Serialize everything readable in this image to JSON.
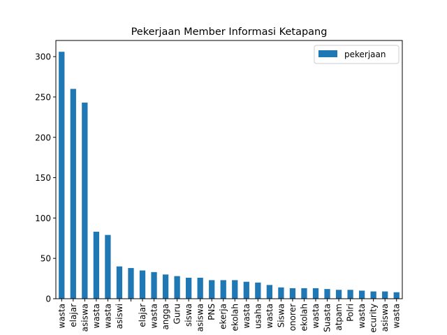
{
  "chart_data": {
    "type": "bar",
    "title": "Pekerjaan Member Informasi Ketapang",
    "xlabel": "",
    "ylabel": "",
    "ylim": [
      0,
      320
    ],
    "yticks": [
      0,
      50,
      100,
      150,
      200,
      250,
      300
    ],
    "categories": [
      "wasta",
      "elajar",
      "asiswa",
      "wasta",
      "wasta",
      "asiswi",
      "",
      "elajar",
      "wasta",
      "angga",
      "Guru",
      "siswa",
      "asiswa",
      "PNS",
      "ekerja",
      "ekolah",
      "wasta",
      "usaha",
      "wasta",
      "Siswa",
      "onorer",
      "ekolah",
      "wasta",
      "Suasta",
      "atpam",
      "Polri",
      "wasta",
      "ecurity",
      "asiswa",
      "wasta"
    ],
    "series": [
      {
        "name": "pekerjaan",
        "color": "#1f77b4",
        "values": [
          306,
          260,
          243,
          83,
          79,
          40,
          38,
          35,
          33,
          30,
          28,
          26,
          26,
          23,
          23,
          23,
          21,
          20,
          17,
          14,
          13,
          13,
          13,
          12,
          11,
          11,
          10,
          9,
          9,
          8
        ]
      }
    ],
    "legend": {
      "position": "top-right"
    },
    "grid": false
  }
}
